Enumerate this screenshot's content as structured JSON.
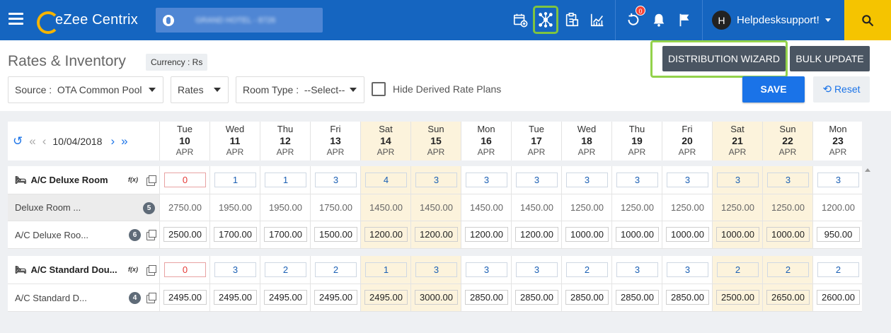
{
  "app": {
    "name": "eZee Centrix",
    "hotel": "GRAND HOTEL - 8726"
  },
  "header": {
    "user": "Helpdesksupport!",
    "avatar_initial": "H",
    "notification_badge": "0"
  },
  "page": {
    "title": "Rates & Inventory",
    "currency": "Currency : Rs"
  },
  "filters": {
    "source": "Source :  OTA Common Pool",
    "rates": "Rates",
    "room_type": "Room Type :  --Select--",
    "hide_derived": "Hide Derived Rate Plans"
  },
  "buttons": {
    "distribution_wizard": "DISTRIBUTION WIZARD",
    "bulk_update": "BULK UPDATE",
    "save": "SAVE",
    "reset": "Reset"
  },
  "date_nav": {
    "date": "10/04/2018"
  },
  "days": [
    {
      "dow": "Tue",
      "d": "10",
      "m": "APR",
      "we": false
    },
    {
      "dow": "Wed",
      "d": "11",
      "m": "APR",
      "we": false
    },
    {
      "dow": "Thu",
      "d": "12",
      "m": "APR",
      "we": false
    },
    {
      "dow": "Fri",
      "d": "13",
      "m": "APR",
      "we": false
    },
    {
      "dow": "Sat",
      "d": "14",
      "m": "APR",
      "we": true
    },
    {
      "dow": "Sun",
      "d": "15",
      "m": "APR",
      "we": true
    },
    {
      "dow": "Mon",
      "d": "16",
      "m": "APR",
      "we": false
    },
    {
      "dow": "Tue",
      "d": "17",
      "m": "APR",
      "we": false
    },
    {
      "dow": "Wed",
      "d": "18",
      "m": "APR",
      "we": false
    },
    {
      "dow": "Thu",
      "d": "19",
      "m": "APR",
      "we": false
    },
    {
      "dow": "Fri",
      "d": "20",
      "m": "APR",
      "we": false
    },
    {
      "dow": "Sat",
      "d": "21",
      "m": "APR",
      "we": true
    },
    {
      "dow": "Sun",
      "d": "22",
      "m": "APR",
      "we": true
    },
    {
      "dow": "Mon",
      "d": "23",
      "m": "APR",
      "we": false
    }
  ],
  "rooms": [
    {
      "name": "A/C Deluxe Room",
      "fx": "f(x)",
      "inventory": [
        "0",
        "1",
        "1",
        "3",
        "4",
        "3",
        "3",
        "3",
        "3",
        "3",
        "3",
        "3",
        "3",
        "3"
      ],
      "derived": {
        "name": "Deluxe Room ...",
        "count": "5",
        "values": [
          "2750.00",
          "1950.00",
          "1950.00",
          "1750.00",
          "1450.00",
          "1450.00",
          "1450.00",
          "1450.00",
          "1250.00",
          "1250.00",
          "1250.00",
          "1250.00",
          "1250.00",
          "1200.00"
        ]
      },
      "rate": {
        "name": "A/C Deluxe Roo...",
        "count": "6",
        "values": [
          "2500.00",
          "1700.00",
          "1700.00",
          "1500.00",
          "1200.00",
          "1200.00",
          "1200.00",
          "1200.00",
          "1000.00",
          "1000.00",
          "1000.00",
          "1000.00",
          "1000.00",
          "950.00"
        ]
      }
    },
    {
      "name": "A/C Standard Dou...",
      "fx": "f(x)",
      "inventory": [
        "0",
        "3",
        "2",
        "2",
        "1",
        "3",
        "3",
        "3",
        "2",
        "3",
        "3",
        "2",
        "2",
        "2"
      ],
      "rate": {
        "name": "A/C Standard D...",
        "count": "4",
        "values": [
          "2495.00",
          "2495.00",
          "2495.00",
          "2495.00",
          "2495.00",
          "3000.00",
          "2850.00",
          "2850.00",
          "2850.00",
          "2850.00",
          "2850.00",
          "2500.00",
          "2650.00",
          "2600.00"
        ]
      }
    }
  ]
}
